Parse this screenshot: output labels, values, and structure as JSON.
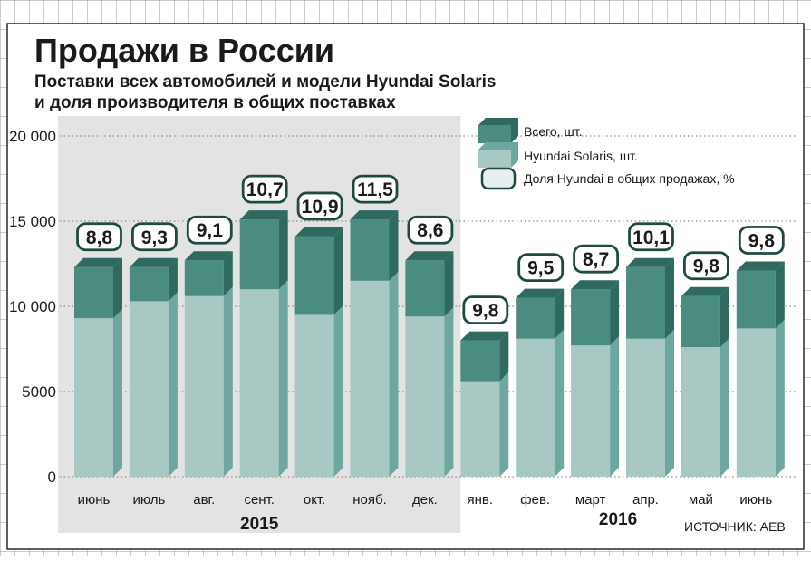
{
  "title": "Продажи в России",
  "subtitle_line1": "Поставки всех автомобилей и модели Hyundai Solaris",
  "subtitle_line2": "и доля производителя в общих поставках",
  "source": "ИСТОЧНИК: АЕВ",
  "colors": {
    "total": "#4a8c80",
    "total_side": "#2f6a60",
    "solaris": "#a8c8c4",
    "solaris_side": "#6ea79f",
    "shade_2015": "#e3e3e3",
    "bubble_border": "#1f4a44",
    "bubble_fill": "#ffffff"
  },
  "chart_data": {
    "type": "bar",
    "stacked_3d": true,
    "categories": [
      "июнь",
      "июль",
      "авг.",
      "сент.",
      "окт.",
      "нояб.",
      "дек.",
      "янв.",
      "фев.",
      "март",
      "апр.",
      "май",
      "июнь"
    ],
    "year_labels": [
      {
        "text": "2015",
        "from": 0,
        "to": 6
      },
      {
        "text": "2016",
        "from": 7,
        "to": 12
      }
    ],
    "series": [
      {
        "name": "Всего, шт.",
        "values": [
          12300,
          12300,
          12700,
          15100,
          14100,
          15100,
          12700,
          8000,
          10500,
          11000,
          12300,
          10600,
          12100
        ]
      },
      {
        "name": "Hyundai Solaris, шт.",
        "values": [
          9300,
          10300,
          10600,
          11000,
          9500,
          11500,
          9400,
          5600,
          8100,
          7700,
          8100,
          7600,
          8700
        ]
      }
    ],
    "share_series": {
      "name": "Доля Hyundai в общих продажах, %",
      "labels": [
        "8,8",
        "9,3",
        "9,1",
        "10,7",
        "10,9",
        "11,5",
        "8,6",
        "9,8",
        "9,5",
        "8,7",
        "10,1",
        "9,8",
        "9,8"
      ]
    },
    "yticks": [
      {
        "value": 0,
        "label": "0"
      },
      {
        "value": 5000,
        "label": "5000"
      },
      {
        "value": 10000,
        "label": "10 000"
      },
      {
        "value": 15000,
        "label": "15 000"
      },
      {
        "value": 20000,
        "label": "20 000"
      }
    ],
    "ylim": [
      0,
      20000
    ],
    "grid": true,
    "legend_position": "top-right"
  }
}
